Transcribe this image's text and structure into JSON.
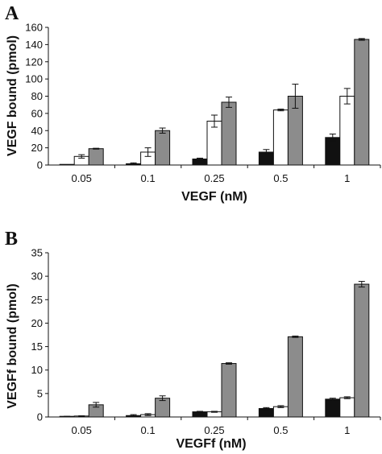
{
  "chart_data": [
    {
      "type": "bar",
      "panel_label": "A",
      "categories": [
        "0.05",
        "0.1",
        "0.25",
        "0.5",
        "1"
      ],
      "xlabel": "VEGF (nM)",
      "ylabel": "VEGF bound (pmol)",
      "ylim": [
        0,
        160
      ],
      "yticks": [
        "0",
        "20",
        "40",
        "60",
        "80",
        "100",
        "120",
        "140",
        "160"
      ],
      "grid": false,
      "series": [
        {
          "color": "#111111",
          "values": [
            0,
            1.5,
            7,
            15,
            32
          ],
          "errors": [
            0,
            1,
            1,
            3,
            4
          ]
        },
        {
          "color": "#ffffff",
          "values": [
            10,
            15,
            51,
            64,
            80
          ],
          "errors": [
            2,
            5,
            7,
            1,
            9
          ]
        },
        {
          "color": "#8c8c8c",
          "values": [
            19,
            40,
            73,
            80,
            146
          ],
          "errors": [
            0.5,
            3,
            6,
            14,
            1
          ]
        }
      ]
    },
    {
      "type": "bar",
      "panel_label": "B",
      "categories": [
        "0.05",
        "0.1",
        "0.25",
        "0.5",
        "1"
      ],
      "xlabel": "VEGFf (nM)",
      "ylabel": "VEGFf bound (pmol)",
      "ylim": [
        0,
        35
      ],
      "yticks": [
        "0",
        "5",
        "10",
        "15",
        "20",
        "25",
        "30",
        "35"
      ],
      "grid": false,
      "series": [
        {
          "color": "#111111",
          "values": [
            0.1,
            0.3,
            1.1,
            1.8,
            3.8
          ],
          "errors": [
            0.05,
            0.2,
            0.1,
            0.2,
            0.2
          ]
        },
        {
          "color": "#ffffff",
          "values": [
            0.2,
            0.5,
            1.1,
            2.2,
            4.1
          ],
          "errors": [
            0.05,
            0.2,
            0.1,
            0.2,
            0.2
          ]
        },
        {
          "color": "#8c8c8c",
          "values": [
            2.6,
            4.0,
            11.4,
            17.1,
            28.3
          ],
          "errors": [
            0.5,
            0.5,
            0.15,
            0.15,
            0.6
          ]
        }
      ]
    }
  ]
}
